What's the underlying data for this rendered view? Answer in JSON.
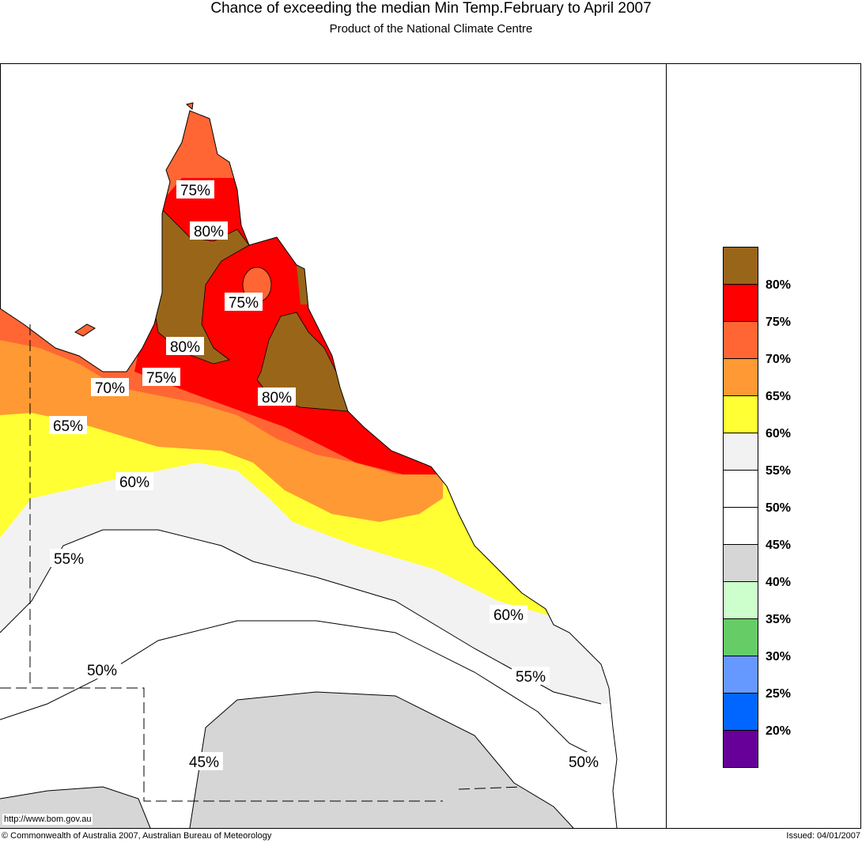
{
  "header": {
    "title": "Chance of exceeding the median Min Temp.February to April 2007",
    "subtitle": "Product of the National Climate Centre"
  },
  "map": {
    "labels": [
      "75%",
      "80%",
      "75%",
      "80%",
      "75%",
      "80%",
      "70%",
      "65%",
      "60%",
      "55%",
      "50%",
      "45%",
      "60%",
      "55%",
      "50%"
    ],
    "url": "http://www.bom.gov.au"
  },
  "legend": {
    "colors": [
      "#996619",
      "#ff0000",
      "#ff6633",
      "#ff9933",
      "#ffff33",
      "#f2f2f2",
      "#ffffff",
      "#ffffff",
      "#d6d6d6",
      "#ccffcc",
      "#66cc66",
      "#6699ff",
      "#0066ff",
      "#660099"
    ],
    "labels": [
      "80%",
      "75%",
      "70%",
      "65%",
      "60%",
      "55%",
      "50%",
      "45%",
      "40%",
      "35%",
      "30%",
      "25%",
      "20%"
    ]
  },
  "footer": {
    "copyright": "© Commonwealth of Australia 2007, Australian Bureau of Meteorology",
    "issued": "Issued: 04/01/2007"
  }
}
